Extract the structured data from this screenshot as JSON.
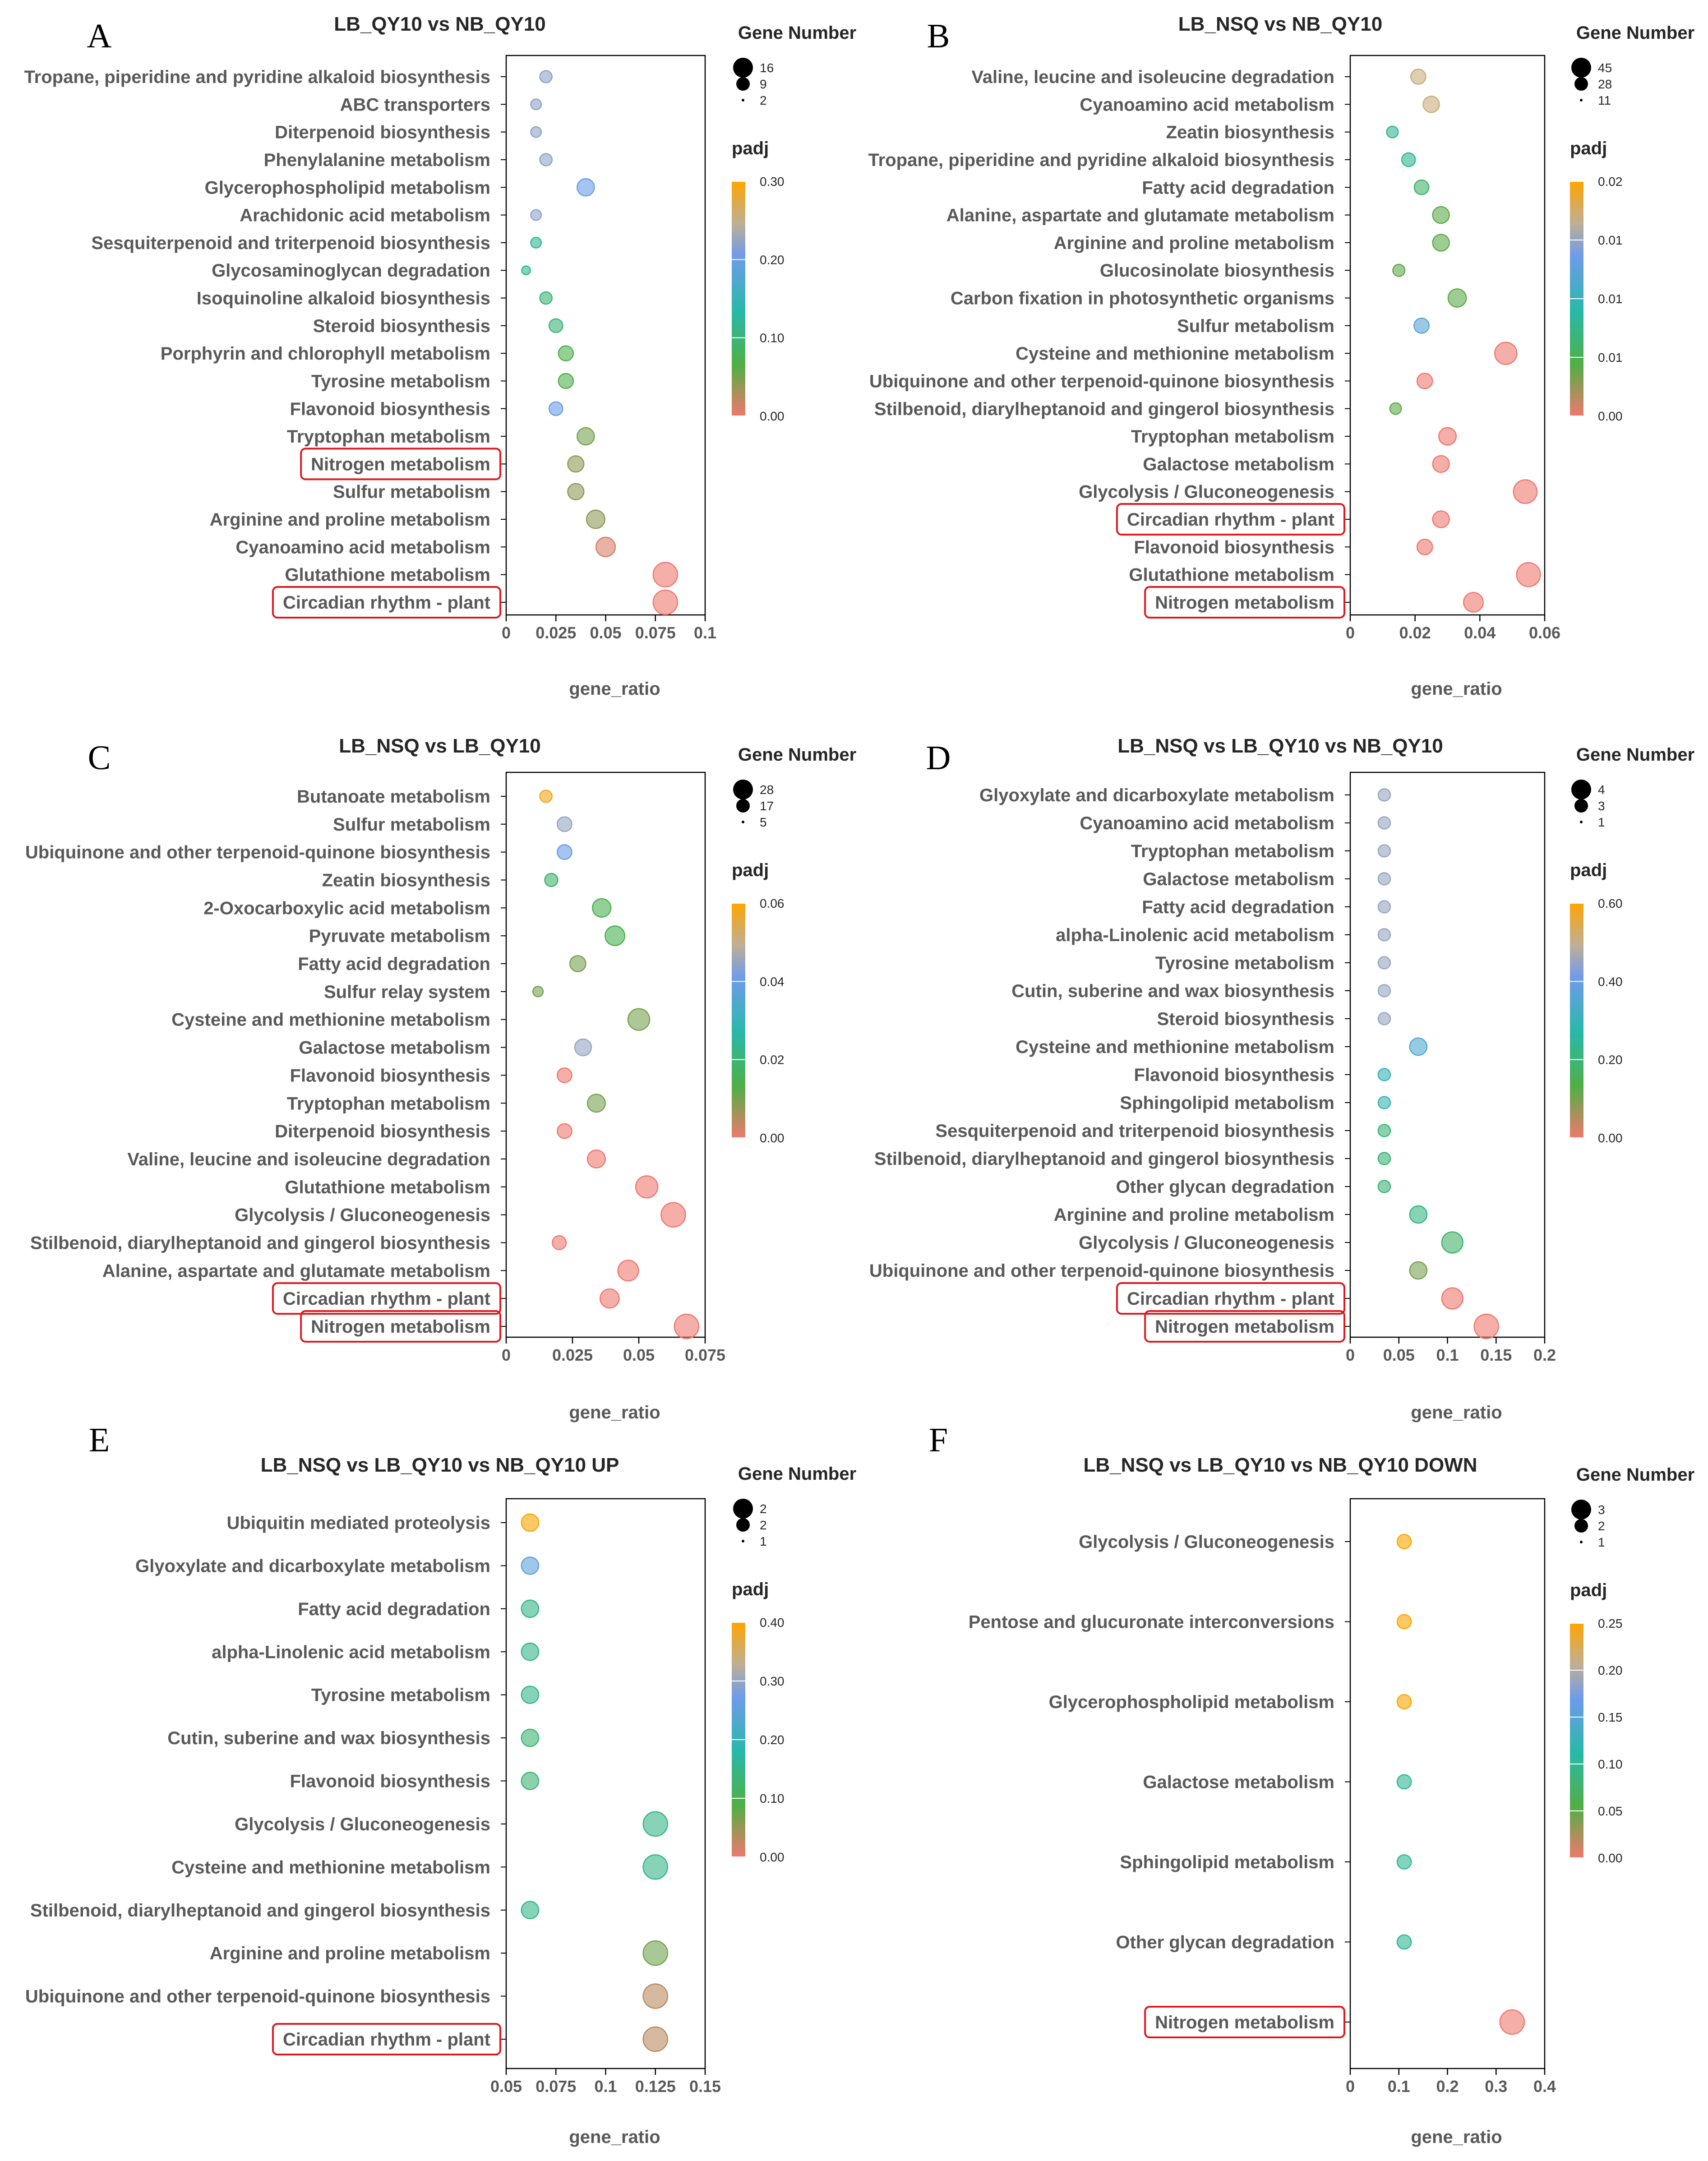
{
  "chart_data": [
    {
      "panel": "A",
      "type": "scatter",
      "title": "LB_QY10 vs NB_QY10",
      "xlabel": "gene_ratio",
      "xlim": [
        0,
        0.1
      ],
      "xticks": [
        0,
        0.025,
        0.05,
        0.075,
        0.1
      ],
      "xtick_labels": [
        "0",
        "0.025",
        "0.05",
        "0.075",
        "0.1"
      ],
      "size_legend": {
        "title": "Gene Number",
        "values": [
          16,
          9,
          2
        ],
        "labels": [
          "16",
          "9",
          "2"
        ]
      },
      "color_legend": {
        "title": "padj",
        "range": [
          0,
          0.3
        ],
        "labels": [
          "0.30",
          "0.20",
          "0.10",
          "0.00"
        ]
      },
      "highlighted": [
        "Nitrogen metabolism",
        "Circadian rhythm - plant"
      ],
      "categories": [
        "Tropane, piperidine and pyridine alkaloid biosynthesis",
        "ABC transporters",
        "Diterpenoid biosynthesis",
        "Phenylalanine metabolism",
        "Glycerophospholipid metabolism",
        "Arachidonic acid metabolism",
        "Sesquiterpenoid and triterpenoid biosynthesis",
        "Glycosaminoglycan degradation",
        "Isoquinoline alkaloid biosynthesis",
        "Steroid biosynthesis",
        "Porphyrin and chlorophyll metabolism",
        "Tyrosine metabolism",
        "Flavonoid biosynthesis",
        "Tryptophan metabolism",
        "Nitrogen metabolism",
        "Sulfur metabolism",
        "Arginine and proline metabolism",
        "Cyanoamino acid metabolism",
        "Glutathione metabolism",
        "Circadian rhythm - plant"
      ],
      "gene_ratio": [
        0.02,
        0.015,
        0.015,
        0.02,
        0.04,
        0.015,
        0.015,
        0.01,
        0.02,
        0.025,
        0.03,
        0.03,
        0.025,
        0.04,
        0.035,
        0.035,
        0.045,
        0.05,
        0.08,
        0.08
      ],
      "gene_number": [
        4,
        3,
        3,
        4,
        8,
        3,
        3,
        2,
        4,
        5,
        6,
        6,
        5,
        8,
        7,
        7,
        9,
        10,
        16,
        16
      ],
      "padj": [
        0.22,
        0.22,
        0.22,
        0.22,
        0.2,
        0.22,
        0.12,
        0.12,
        0.1,
        0.1,
        0.07,
        0.07,
        0.2,
        0.05,
        0.04,
        0.04,
        0.04,
        0.01,
        0.0,
        0.0
      ]
    },
    {
      "panel": "B",
      "type": "scatter",
      "title": "LB_NSQ vs NB_QY10",
      "xlabel": "gene_ratio",
      "xlim": [
        0,
        0.06
      ],
      "xticks": [
        0,
        0.02,
        0.04,
        0.06
      ],
      "xtick_labels": [
        "0",
        "0.02",
        "0.04",
        "0.06"
      ],
      "size_legend": {
        "title": "Gene Number",
        "values": [
          45,
          28,
          11
        ],
        "labels": [
          "45",
          "28",
          "11"
        ]
      },
      "color_legend": {
        "title": "padj",
        "range": [
          0,
          0.02
        ],
        "labels": [
          "0.02",
          "0.01",
          "0.01",
          "0.01",
          "0.00"
        ]
      },
      "highlighted": [
        "Circadian rhythm - plant",
        "Nitrogen metabolism"
      ],
      "categories": [
        "Valine, leucine and isoleucine degradation",
        "Cyanoamino acid metabolism",
        "Zeatin biosynthesis",
        "Tropane, piperidine and pyridine alkaloid biosynthesis",
        "Fatty acid degradation",
        "Alanine, aspartate and glutamate metabolism",
        "Arginine and proline metabolism",
        "Glucosinolate biosynthesis",
        "Carbon fixation in photosynthetic organisms",
        "Sulfur metabolism",
        "Cysteine and methionine metabolism",
        "Ubiquinone and other terpenoid-quinone biosynthesis",
        "Stilbenoid, diarylheptanoid and gingerol biosynthesis",
        "Tryptophan metabolism",
        "Galactose metabolism",
        "Glycolysis / Gluconeogenesis",
        "Circadian rhythm - plant",
        "Flavonoid biosynthesis",
        "Glutathione metabolism",
        "Nitrogen metabolism"
      ],
      "gene_ratio": [
        0.021,
        0.025,
        0.013,
        0.018,
        0.022,
        0.028,
        0.028,
        0.015,
        0.033,
        0.022,
        0.048,
        0.023,
        0.014,
        0.03,
        0.028,
        0.054,
        0.028,
        0.023,
        0.055,
        0.038
      ],
      "gene_number": [
        17,
        20,
        10,
        14,
        16,
        21,
        21,
        11,
        25,
        17,
        37,
        18,
        10,
        23,
        21,
        42,
        21,
        18,
        43,
        29
      ],
      "padj": [
        0.017,
        0.017,
        0.008,
        0.008,
        0.006,
        0.004,
        0.004,
        0.004,
        0.004,
        0.012,
        0.0,
        0.0,
        0.004,
        0.0,
        0.0,
        0.0,
        0.0,
        0.0,
        0.0,
        0.0
      ]
    },
    {
      "panel": "C",
      "type": "scatter",
      "title": "LB_NSQ vs LB_QY10",
      "xlabel": "gene_ratio",
      "xlim": [
        0,
        0.075
      ],
      "xticks": [
        0,
        0.025,
        0.05,
        0.075
      ],
      "xtick_labels": [
        "0",
        "0.025",
        "0.05",
        "0.075"
      ],
      "size_legend": {
        "title": "Gene Number",
        "values": [
          28,
          17,
          5
        ],
        "labels": [
          "28",
          "17",
          "5"
        ]
      },
      "color_legend": {
        "title": "padj",
        "range": [
          0,
          0.06
        ],
        "labels": [
          "0.06",
          "0.04",
          "0.02",
          "0.00"
        ]
      },
      "highlighted": [
        "Circadian rhythm - plant",
        "Nitrogen metabolism"
      ],
      "categories": [
        "Butanoate metabolism",
        "Sulfur metabolism",
        "Ubiquinone and other terpenoid-quinone biosynthesis",
        "Zeatin biosynthesis",
        "2-Oxocarboxylic acid metabolism",
        "Pyruvate metabolism",
        "Fatty acid degradation",
        "Sulfur relay system",
        "Cysteine and methionine metabolism",
        "Galactose metabolism",
        "Flavonoid biosynthesis",
        "Tryptophan metabolism",
        "Diterpenoid biosynthesis",
        "Valine, leucine and isoleucine degradation",
        "Glutathione metabolism",
        "Glycolysis / Gluconeogenesis",
        "Stilbenoid, diarylheptanoid and gingerol biosynthesis",
        "Alanine, aspartate and glutamate metabolism",
        "Circadian rhythm - plant",
        "Nitrogen metabolism"
      ],
      "gene_ratio": [
        0.015,
        0.022,
        0.022,
        0.017,
        0.036,
        0.041,
        0.027,
        0.012,
        0.05,
        0.029,
        0.022,
        0.034,
        0.022,
        0.034,
        0.053,
        0.063,
        0.02,
        0.046,
        0.039,
        0.068
      ],
      "gene_number": [
        7,
        10,
        10,
        8,
        16,
        18,
        12,
        5,
        22,
        13,
        10,
        15,
        10,
        15,
        23,
        28,
        9,
        20,
        17,
        28
      ],
      "padj": [
        0.058,
        0.045,
        0.04,
        0.018,
        0.015,
        0.015,
        0.01,
        0.01,
        0.01,
        0.045,
        0.0,
        0.01,
        0.0,
        0.0,
        0.0,
        0.0,
        0.0,
        0.0,
        0.0,
        0.0
      ]
    },
    {
      "panel": "D",
      "type": "scatter",
      "title": "LB_NSQ vs LB_QY10 vs NB_QY10",
      "xlabel": "gene_ratio",
      "xlim": [
        0,
        0.2
      ],
      "xticks": [
        0,
        0.05,
        0.1,
        0.15,
        0.2
      ],
      "xtick_labels": [
        "0",
        "0.05",
        "0.1",
        "0.15",
        "0.2"
      ],
      "size_legend": {
        "title": "Gene Number",
        "values": [
          4,
          3,
          1
        ],
        "labels": [
          "4",
          "3",
          "1"
        ]
      },
      "color_legend": {
        "title": "padj",
        "range": [
          0,
          0.6
        ],
        "labels": [
          "0.60",
          "0.40",
          "0.20",
          "0.00"
        ]
      },
      "highlighted": [
        "Circadian rhythm - plant",
        "Nitrogen metabolism"
      ],
      "categories": [
        "Glyoxylate and dicarboxylate metabolism",
        "Cyanoamino acid metabolism",
        "Tryptophan metabolism",
        "Galactose metabolism",
        "Fatty acid degradation",
        "alpha-Linolenic acid metabolism",
        "Tyrosine metabolism",
        "Cutin, suberine and wax biosynthesis",
        "Steroid biosynthesis",
        "Cysteine and methionine metabolism",
        "Flavonoid biosynthesis",
        "Sphingolipid metabolism",
        "Sesquiterpenoid and triterpenoid biosynthesis",
        "Stilbenoid, diarylheptanoid and gingerol biosynthesis",
        "Other glycan degradation",
        "Arginine and proline metabolism",
        "Glycolysis / Gluconeogenesis",
        "Ubiquinone and other terpenoid-quinone biosynthesis",
        "Circadian rhythm - plant",
        "Nitrogen metabolism"
      ],
      "gene_ratio": [
        0.035,
        0.035,
        0.035,
        0.035,
        0.035,
        0.035,
        0.035,
        0.035,
        0.035,
        0.07,
        0.035,
        0.035,
        0.035,
        0.035,
        0.035,
        0.07,
        0.105,
        0.07,
        0.105,
        0.14
      ],
      "gene_number": [
        1,
        1,
        1,
        1,
        1,
        1,
        1,
        1,
        1,
        2,
        1,
        1,
        1,
        1,
        1,
        2,
        3,
        2,
        3,
        4
      ],
      "padj": [
        0.45,
        0.45,
        0.45,
        0.45,
        0.45,
        0.45,
        0.45,
        0.45,
        0.45,
        0.35,
        0.3,
        0.3,
        0.2,
        0.2,
        0.2,
        0.22,
        0.18,
        0.1,
        0.0,
        0.0
      ]
    },
    {
      "panel": "E",
      "type": "scatter",
      "title": "LB_NSQ vs LB_QY10 vs NB_QY10 UP",
      "xlabel": "gene_ratio",
      "xlim": [
        0.05,
        0.15
      ],
      "xticks": [
        0.05,
        0.075,
        0.1,
        0.125,
        0.15
      ],
      "xtick_labels": [
        "0.05",
        "0.075",
        "0.1",
        "0.125",
        "0.15"
      ],
      "size_legend": {
        "title": "Gene Number",
        "values": [
          2,
          2,
          1
        ],
        "labels": [
          "2",
          "2",
          "1"
        ]
      },
      "color_legend": {
        "title": "padj",
        "range": [
          0,
          0.4
        ],
        "labels": [
          "0.40",
          "0.30",
          "0.20",
          "0.10",
          "0.00"
        ]
      },
      "highlighted": [
        "Circadian rhythm - plant"
      ],
      "categories": [
        "Ubiquitin mediated proteolysis",
        "Glyoxylate and dicarboxylate metabolism",
        "Fatty acid degradation",
        "alpha-Linolenic acid metabolism",
        "Tyrosine metabolism",
        "Cutin, suberine and wax biosynthesis",
        "Flavonoid biosynthesis",
        "Glycolysis / Gluconeogenesis",
        "Cysteine and methionine metabolism",
        "Stilbenoid, diarylheptanoid and gingerol biosynthesis",
        "Arginine and proline metabolism",
        "Ubiquinone and other terpenoid-quinone biosynthesis",
        "Circadian rhythm - plant"
      ],
      "gene_ratio": [
        0.062,
        0.062,
        0.062,
        0.062,
        0.062,
        0.062,
        0.062,
        0.125,
        0.125,
        0.062,
        0.125,
        0.125,
        0.125
      ],
      "gene_number": [
        1,
        1,
        1,
        1,
        1,
        1,
        1,
        2,
        2,
        1,
        2,
        2,
        2
      ],
      "padj": [
        0.4,
        0.25,
        0.15,
        0.15,
        0.15,
        0.13,
        0.13,
        0.15,
        0.15,
        0.15,
        0.07,
        0.03,
        0.03
      ]
    },
    {
      "panel": "F",
      "type": "scatter",
      "title": "LB_NSQ vs LB_QY10 vs NB_QY10 DOWN",
      "xlabel": "gene_ratio",
      "xlim": [
        0,
        0.4
      ],
      "xticks": [
        0,
        0.1,
        0.2,
        0.3,
        0.4
      ],
      "xtick_labels": [
        "0",
        "0.1",
        "0.2",
        "0.3",
        "0.4"
      ],
      "size_legend": {
        "title": "Gene Number",
        "values": [
          3,
          2,
          1
        ],
        "labels": [
          "3",
          "2",
          "1"
        ]
      },
      "color_legend": {
        "title": "padj",
        "range": [
          0,
          0.25
        ],
        "labels": [
          "0.25",
          "0.20",
          "0.15",
          "0.10",
          "0.05",
          "0.00"
        ]
      },
      "highlighted": [
        "Nitrogen metabolism"
      ],
      "categories": [
        "Glycolysis / Gluconeogenesis",
        "Pentose and glucuronate interconversions",
        "Glycerophospholipid metabolism",
        "Galactose metabolism",
        "Sphingolipid metabolism",
        "Other glycan degradation",
        "Nitrogen metabolism"
      ],
      "gene_ratio": [
        0.111,
        0.111,
        0.111,
        0.111,
        0.111,
        0.111,
        0.333
      ],
      "gene_number": [
        1,
        1,
        1,
        1,
        1,
        1,
        3
      ],
      "padj": [
        0.25,
        0.25,
        0.25,
        0.1,
        0.1,
        0.1,
        0.0
      ]
    }
  ]
}
